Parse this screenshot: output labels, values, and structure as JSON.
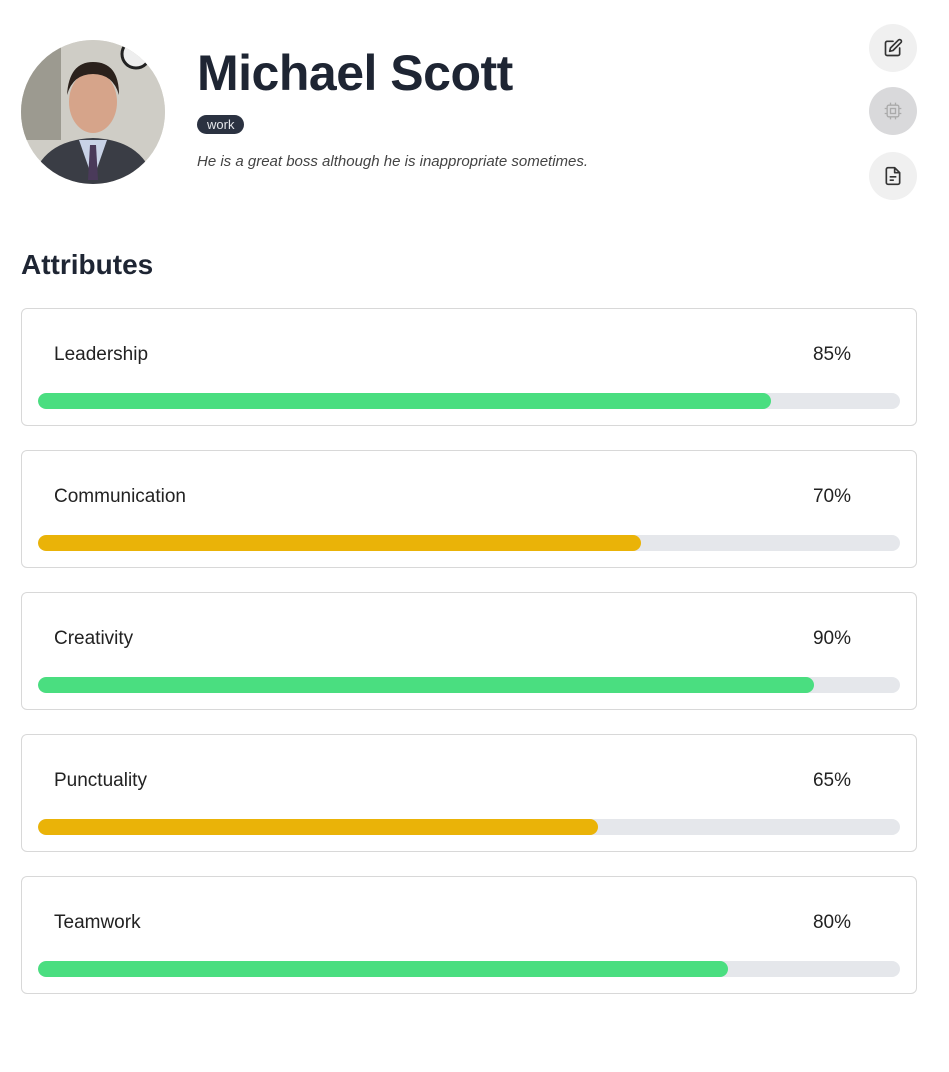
{
  "profile": {
    "name": "Michael Scott",
    "tag": "work",
    "description": "He is a great boss although he is inappropriate sometimes."
  },
  "actions": [
    {
      "icon": "edit-icon"
    },
    {
      "icon": "chip-icon",
      "disabled": true
    },
    {
      "icon": "document-icon"
    }
  ],
  "attributes_title": "Attributes",
  "attributes": [
    {
      "label": "Leadership",
      "value_text": "85%",
      "value": 85,
      "color": "#4ade80"
    },
    {
      "label": "Communication",
      "value_text": "70%",
      "value": 70,
      "color": "#eab308"
    },
    {
      "label": "Creativity",
      "value_text": "90%",
      "value": 90,
      "color": "#4ade80"
    },
    {
      "label": "Punctuality",
      "value_text": "65%",
      "value": 65,
      "color": "#eab308"
    },
    {
      "label": "Teamwork",
      "value_text": "80%",
      "value": 80,
      "color": "#4ade80"
    }
  ]
}
